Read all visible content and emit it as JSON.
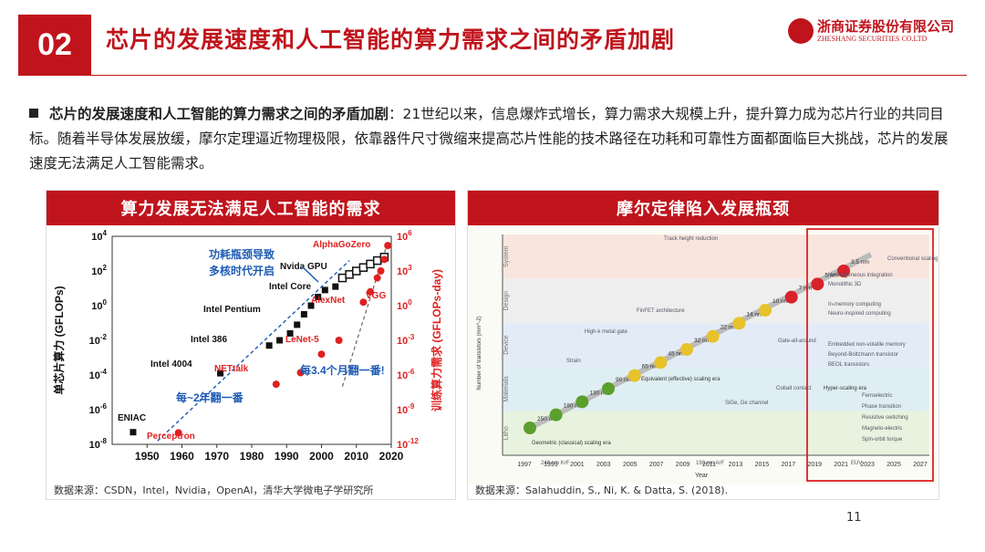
{
  "header": {
    "section_number": "02",
    "title": "芯片的发展速度和人工智能的算力需求之间的矛盾加剧"
  },
  "logo": {
    "cn": "浙商证券股份有限公司",
    "en": "ZHESHANG SECURITIES CO.LTD"
  },
  "body": {
    "lead": "芯片的发展速度和人工智能的算力需求之间的矛盾加剧",
    "text": "：21世纪以来，信息爆炸式增长，算力需求大规模上升，提升算力成为芯片行业的共同目标。随着半导体发展放缓，摩尔定理逼近物理极限，依靠器件尺寸微缩来提高芯片性能的技术路径在功耗和可靠性方面都面临巨大挑战，芯片的发展速度无法满足人工智能需求。"
  },
  "left_panel": {
    "heading": "算力发展无法满足人工智能的需求",
    "source": "数据来源：CSDN，Intel，Nvidia，OpenAI，清华大学微电子学研究所"
  },
  "right_panel": {
    "heading": "摩尔定律陷入发展瓶颈",
    "source": "数据来源：Salahuddin, S., Ni, K. & Datta, S. (2018)."
  },
  "page_number": "11",
  "chart_data": [
    {
      "type": "scatter",
      "title": "算力发展无法满足人工智能的需求",
      "xlabel": "",
      "ylabel": "单芯片算力 (GFLOPs)",
      "y2label": "训练算力需求 (GFLOPs-day)",
      "xlim": [
        1940,
        2020
      ],
      "xticks": [
        "1950",
        "1960",
        "1970",
        "1980",
        "1990",
        "2000",
        "2010",
        "2020"
      ],
      "yticks": [
        "10^-8",
        "10^-6",
        "10^-4",
        "10^-2",
        "10^0",
        "10^2",
        "10^4"
      ],
      "y2ticks": [
        "10^-12",
        "10^-9",
        "10^-6",
        "10^-3",
        "10^0",
        "10^3",
        "10^6"
      ],
      "series": [
        {
          "name": "chip",
          "color": "#111111",
          "points": [
            [
              1946,
              -7.3
            ],
            [
              1971,
              -3.9
            ],
            [
              1985,
              -2.3
            ],
            [
              1988,
              -2.0
            ],
            [
              1991,
              -1.6
            ],
            [
              1993,
              -1.1
            ],
            [
              1995,
              -0.5
            ],
            [
              1997,
              0.0
            ],
            [
              1999,
              0.5
            ],
            [
              2001,
              0.9
            ],
            [
              2004,
              1.1
            ]
          ]
        },
        {
          "name": "gpu",
          "color": "#111111",
          "points": [
            [
              2006,
              1.6
            ],
            [
              2008,
              1.8
            ],
            [
              2010,
              2.0
            ],
            [
              2012,
              2.2
            ],
            [
              2014,
              2.4
            ],
            [
              2016,
              2.6
            ],
            [
              2018,
              2.8
            ]
          ]
        },
        {
          "name": "ai",
          "color": "#e02020",
          "points": [
            [
              1959,
              -11.0
            ],
            [
              1987,
              -6.8
            ],
            [
              1994,
              -5.8
            ],
            [
              2000,
              -4.2
            ],
            [
              2005,
              -3.0
            ],
            [
              2012,
              0.3
            ],
            [
              2014,
              1.2
            ],
            [
              2016,
              2.4
            ],
            [
              2017,
              3.0
            ],
            [
              2018,
              4.0
            ],
            [
              2019,
              5.2
            ]
          ]
        }
      ],
      "annotations": [
        {
          "label": "ENIAC",
          "color": "#111111"
        },
        {
          "label": "Intel 4004",
          "color": "#111111"
        },
        {
          "label": "Intel 386",
          "color": "#111111"
        },
        {
          "label": "Intel Pentium",
          "color": "#111111"
        },
        {
          "label": "Intel Core",
          "color": "#111111"
        },
        {
          "label": "Nvida GPU",
          "color": "#111111"
        },
        {
          "label": "Perceptron",
          "color": "#e02020"
        },
        {
          "label": "NETtalk",
          "color": "#e02020"
        },
        {
          "label": "LeNet-5",
          "color": "#e02020"
        },
        {
          "label": "AlexNet",
          "color": "#e02020"
        },
        {
          "label": "VGG",
          "color": "#e02020"
        },
        {
          "label": "AlphaGoZero",
          "color": "#e02020"
        },
        {
          "label": "功耗瓶颈导致",
          "color": "#1e5bb5"
        },
        {
          "label": "多核时代开启",
          "color": "#1e5bb5"
        },
        {
          "label": "每3.4个月翻一番!",
          "color": "#1e5bb5"
        },
        {
          "label": "每~2年翻一番",
          "color": "#1e5bb5"
        }
      ]
    },
    {
      "type": "line",
      "title": "摩尔定律陷入发展瓶颈",
      "xlabel": "Year",
      "ylabel": "Number of transistors (mm^-2)",
      "x": [
        "1997",
        "1999",
        "2001",
        "2003",
        "2005",
        "2007",
        "2009",
        "2011",
        "2013",
        "2015",
        "2017",
        "2019",
        "2021",
        "2023",
        "2025",
        "2027"
      ],
      "series": [
        {
          "name": "node",
          "color": "#7bbf3a",
          "labels": [
            "250 nm",
            "180 nm",
            "130 nm",
            "90 nm",
            "65 nm",
            "45 nm",
            "32 nm",
            "22 nm",
            "14 nm",
            "10 nm",
            "7 nm",
            "5 nm",
            "3.5 nm"
          ]
        }
      ],
      "bands": [
        "Litho",
        "Materials",
        "Device",
        "Design",
        "System"
      ],
      "notes": [
        "Geometric (classical) scaling era",
        "Equivalent (effective) scaling era",
        "Hyper-scaling era",
        "248 nm KrF",
        "193 nm ArF",
        "EUV",
        "Track height reduction",
        "Conventional scaling",
        "Heterogeneous integration",
        "Monolithic 3D",
        "In-memory computing",
        "Neuro-inspired computing",
        "FinFET architecture",
        "Gate-all-around",
        "High-k metal gate",
        "Strain",
        "Cobalt contact",
        "SiGe, Ge channel",
        "Embedded non-volatile memory",
        "Beyond-Boltzmann transistor",
        "BEOL transistors",
        "Ferroelectric",
        "Phase transition",
        "Resistive switching",
        "Magneto-electric",
        "Spin-orbit torque"
      ]
    }
  ]
}
